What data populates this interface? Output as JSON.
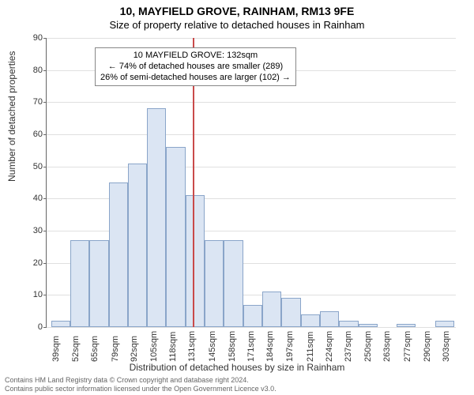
{
  "title_line1": "10, MAYFIELD GROVE, RAINHAM, RM13 9FE",
  "title_line2": "Size of property relative to detached houses in Rainham",
  "chart": {
    "type": "histogram",
    "ylim": [
      0,
      90
    ],
    "ytick_step": 10,
    "yticks": [
      0,
      10,
      20,
      30,
      40,
      50,
      60,
      70,
      80,
      90
    ],
    "ylabel": "Number of detached properties",
    "xlabel": "Distribution of detached houses by size in Rainham",
    "x_min": 33,
    "x_max": 310,
    "x_bar_width": 13,
    "x_ticks": [
      39,
      52,
      65,
      79,
      92,
      105,
      118,
      131,
      145,
      158,
      171,
      184,
      197,
      211,
      224,
      237,
      250,
      263,
      277,
      290,
      303
    ],
    "x_tick_labels": [
      "39sqm",
      "52sqm",
      "65sqm",
      "79sqm",
      "92sqm",
      "105sqm",
      "118sqm",
      "131sqm",
      "145sqm",
      "158sqm",
      "171sqm",
      "184sqm",
      "197sqm",
      "211sqm",
      "224sqm",
      "237sqm",
      "250sqm",
      "263sqm",
      "277sqm",
      "290sqm",
      "303sqm"
    ],
    "bars": [
      {
        "x": 36,
        "v": 2
      },
      {
        "x": 49,
        "v": 27
      },
      {
        "x": 62,
        "v": 27
      },
      {
        "x": 75,
        "v": 45
      },
      {
        "x": 88,
        "v": 51
      },
      {
        "x": 101,
        "v": 68
      },
      {
        "x": 114,
        "v": 56
      },
      {
        "x": 127,
        "v": 41
      },
      {
        "x": 140,
        "v": 27
      },
      {
        "x": 153,
        "v": 27
      },
      {
        "x": 166,
        "v": 7
      },
      {
        "x": 179,
        "v": 11
      },
      {
        "x": 192,
        "v": 9
      },
      {
        "x": 205,
        "v": 4
      },
      {
        "x": 218,
        "v": 5
      },
      {
        "x": 231,
        "v": 2
      },
      {
        "x": 244,
        "v": 1
      },
      {
        "x": 257,
        "v": 0
      },
      {
        "x": 270,
        "v": 1
      },
      {
        "x": 283,
        "v": 0
      },
      {
        "x": 296,
        "v": 2
      }
    ],
    "reference_line_x": 132,
    "bar_fill": "#dbe5f3",
    "bar_stroke": "#8aa5c9",
    "grid_color": "#e0e0e0",
    "background": "#ffffff",
    "refline_color": "#c94a4a",
    "axis_color": "#666666",
    "tick_fontsize": 11,
    "label_fontsize": 12,
    "title_fontsize": 14
  },
  "annotation": {
    "line1": "10 MAYFIELD GROVE: 132sqm",
    "line2": "← 74% of detached houses are smaller (289)",
    "line3": "26% of semi-detached houses are larger (102) →"
  },
  "footer": {
    "line1": "Contains HM Land Registry data © Crown copyright and database right 2024.",
    "line2": "Contains public sector information licensed under the Open Government Licence v3.0."
  }
}
